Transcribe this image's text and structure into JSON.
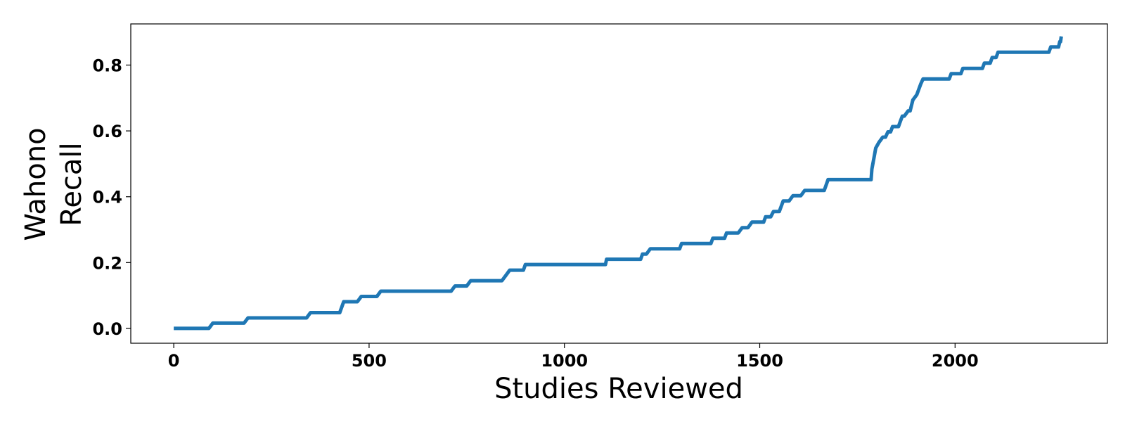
{
  "chart_data": {
    "type": "line",
    "title": "",
    "xlabel": "Studies Reviewed",
    "ylabel_lines": [
      "Wahono",
      "Recall"
    ],
    "xlim": [
      -110,
      2390
    ],
    "ylim": [
      -0.045,
      0.925
    ],
    "xticks": [
      0,
      500,
      1000,
      1500,
      2000
    ],
    "xtick_labels": [
      "0",
      "500",
      "1000",
      "1500",
      "2000"
    ],
    "yticks": [
      0.0,
      0.2,
      0.4,
      0.6,
      0.8
    ],
    "ytick_labels": [
      "0.0",
      "0.2",
      "0.4",
      "0.6",
      "0.8"
    ],
    "grid": false,
    "legend": "none",
    "series": [
      {
        "color": "#1f77b4",
        "x": [
          0,
          90,
          100,
          180,
          190,
          340,
          350,
          425,
          435,
          470,
          480,
          520,
          530,
          710,
          720,
          750,
          760,
          840,
          850,
          860,
          870,
          895,
          900,
          1105,
          1108,
          1195,
          1200,
          1210,
          1220,
          1295,
          1300,
          1375,
          1380,
          1410,
          1415,
          1445,
          1455,
          1470,
          1480,
          1510,
          1515,
          1528,
          1535,
          1550,
          1560,
          1575,
          1585,
          1605,
          1615,
          1665,
          1675,
          1785,
          1787,
          1792,
          1797,
          1805,
          1815,
          1822,
          1828,
          1835,
          1840,
          1855,
          1860,
          1865,
          1870,
          1880,
          1885,
          1892,
          1902,
          1912,
          1918,
          1935,
          1985,
          1990,
          2015,
          2020,
          2070,
          2075,
          2090,
          2095,
          2105,
          2110,
          2240,
          2245,
          2265,
          2268,
          2270,
          2272
        ],
        "y": [
          0.0,
          0.0,
          0.016,
          0.016,
          0.032,
          0.032,
          0.048,
          0.048,
          0.081,
          0.081,
          0.097,
          0.097,
          0.113,
          0.113,
          0.129,
          0.129,
          0.145,
          0.145,
          0.161,
          0.177,
          0.177,
          0.177,
          0.194,
          0.194,
          0.21,
          0.21,
          0.226,
          0.226,
          0.242,
          0.242,
          0.258,
          0.258,
          0.274,
          0.274,
          0.29,
          0.29,
          0.306,
          0.306,
          0.323,
          0.323,
          0.339,
          0.339,
          0.355,
          0.355,
          0.387,
          0.387,
          0.403,
          0.403,
          0.419,
          0.419,
          0.452,
          0.452,
          0.484,
          0.516,
          0.548,
          0.565,
          0.581,
          0.581,
          0.597,
          0.597,
          0.613,
          0.613,
          0.629,
          0.645,
          0.645,
          0.661,
          0.661,
          0.694,
          0.71,
          0.742,
          0.758,
          0.758,
          0.758,
          0.774,
          0.774,
          0.79,
          0.79,
          0.806,
          0.806,
          0.823,
          0.823,
          0.839,
          0.839,
          0.855,
          0.855,
          0.871,
          0.871,
          0.887
        ]
      }
    ]
  }
}
